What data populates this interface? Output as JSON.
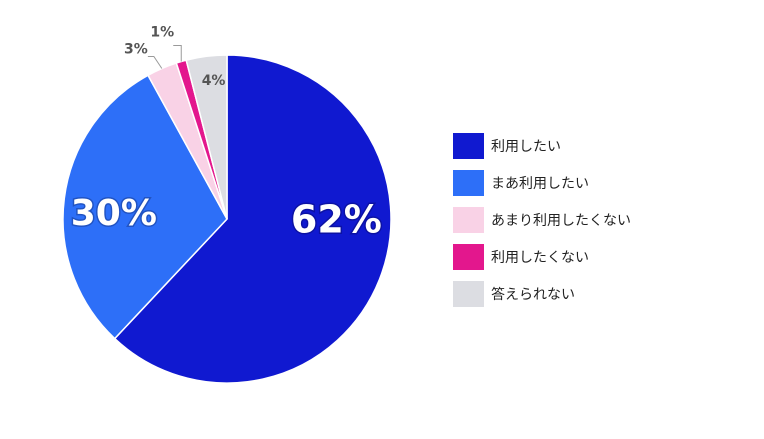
{
  "chart_data": {
    "type": "pie",
    "title": "",
    "categories": [
      "利用したい",
      "まあ利用したい",
      "あまり利用したくない",
      "利用したくない",
      "答えられない"
    ],
    "values": [
      62,
      30,
      3,
      1,
      4
    ],
    "data_labels": [
      "62%",
      "30%",
      "3%",
      "1%",
      "4%"
    ],
    "colors": [
      "#1019d0",
      "#2d6ff8",
      "#f9d2e6",
      "#e3178d",
      "#dcdde2"
    ],
    "start": "top",
    "direction": "clockwise",
    "legend_position": "right"
  },
  "legend": [
    {
      "label": "利用したい",
      "color": "#1019d0"
    },
    {
      "label": "まあ利用したい",
      "color": "#2d6ff8"
    },
    {
      "label": "あまり利用したくない",
      "color": "#f9d2e6"
    },
    {
      "label": "利用したくない",
      "color": "#e3178d"
    },
    {
      "label": "答えられない",
      "color": "#dcdde2"
    }
  ]
}
